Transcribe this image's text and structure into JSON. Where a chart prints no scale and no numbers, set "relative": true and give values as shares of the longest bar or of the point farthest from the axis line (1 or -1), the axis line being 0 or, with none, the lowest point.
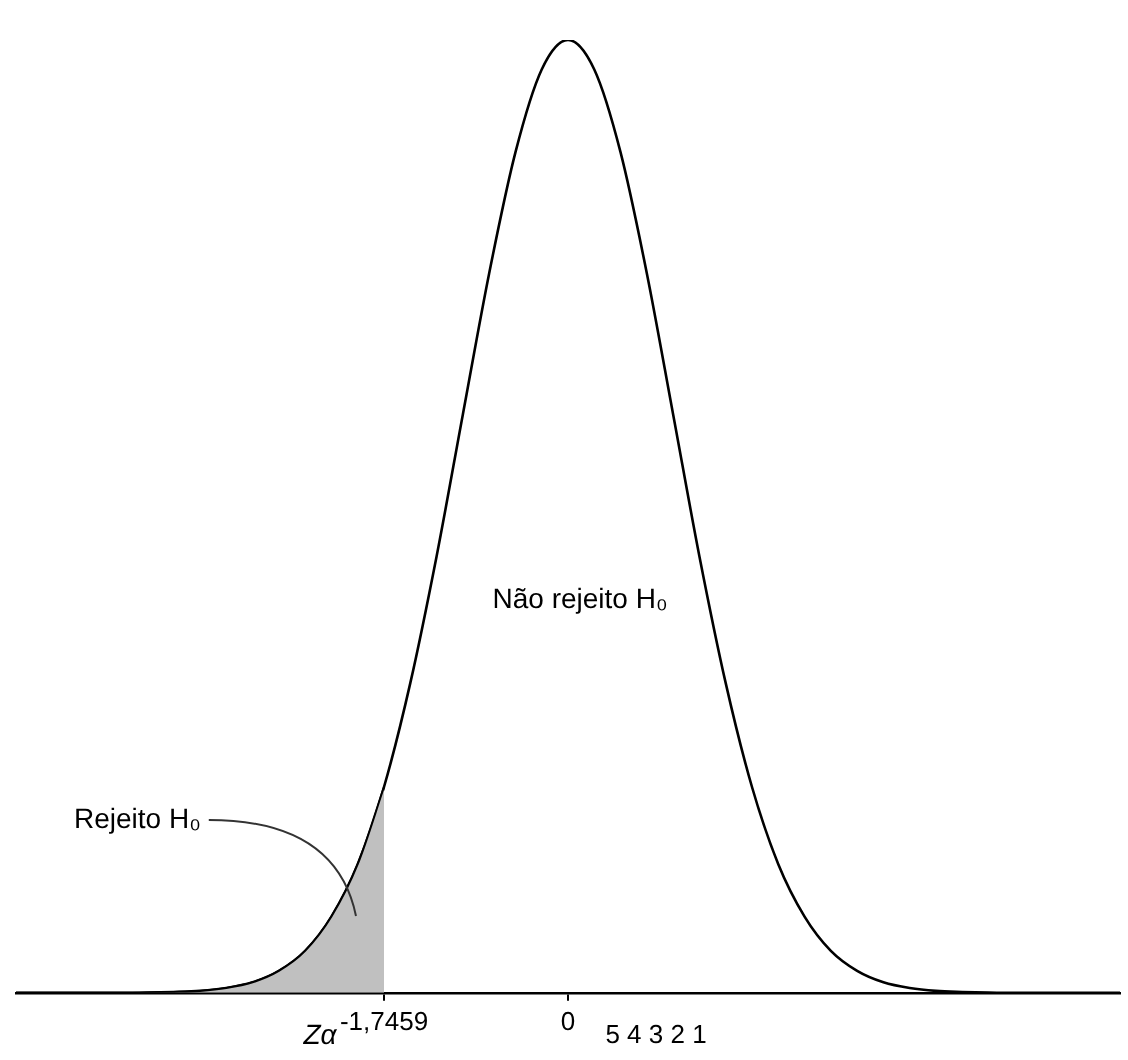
{
  "chart_data": {
    "type": "line",
    "relative": true,
    "legend": false,
    "grid": false,
    "marker": "none",
    "line_style": "solid",
    "categories": [
      null,
      null,
      null,
      null,
      null,
      null,
      null,
      null,
      null,
      null,
      null,
      null,
      null,
      null,
      "-1,7459",
      null,
      null,
      null,
      null,
      null,
      null,
      "0",
      null,
      null,
      null,
      null,
      null,
      null,
      null,
      null,
      null,
      null,
      null,
      null,
      null,
      null,
      null,
      null,
      null,
      null,
      null,
      null,
      null
    ],
    "series": [
      {
        "type": "area",
        "color": "#c0c0c0",
        "values": [
          0,
          0,
          0,
          0,
          0,
          0.0003,
          0.0009,
          0.002,
          0.005,
          0.011,
          0.023,
          0.044,
          0.08,
          0.135,
          0.216,
          null,
          null,
          null,
          null,
          null,
          null,
          null,
          null,
          null,
          null,
          null,
          null,
          null,
          null,
          null,
          null,
          null,
          null,
          null,
          null,
          null,
          null,
          null,
          null,
          null,
          null,
          null,
          null
        ]
      },
      {
        "color": "#000000",
        "values": [
          0,
          0,
          0,
          0,
          0,
          0.0003,
          0.0009,
          0.002,
          0.005,
          0.011,
          0.023,
          0.044,
          0.08,
          0.135,
          0.216,
          0.325,
          0.458,
          0.607,
          0.755,
          0.882,
          0.969,
          1,
          0.969,
          0.882,
          0.755,
          0.607,
          0.458,
          0.325,
          0.216,
          0.135,
          0.08,
          0.044,
          0.023,
          0.011,
          0.005,
          0.002,
          0.0009,
          0.0003,
          0,
          0,
          0,
          0,
          0
        ]
      }
    ],
    "annotations": [
      "Não rejeito H₀",
      "Rejeito H₀",
      "Zα",
      "5 4 3 2 1"
    ]
  }
}
